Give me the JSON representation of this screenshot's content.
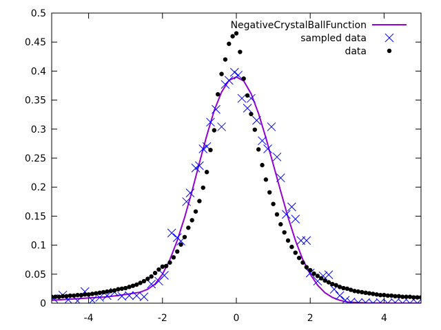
{
  "chart_data": {
    "type": "scatter",
    "title": "",
    "xlabel": "",
    "ylabel": "",
    "xlim": [
      -5,
      5
    ],
    "ylim": [
      0,
      0.5
    ],
    "grid": false,
    "legend_position": "top-right",
    "x_ticks": [
      -4,
      -2,
      0,
      2,
      4
    ],
    "x_tick_labels": [
      "-4",
      "-2",
      "0",
      "2",
      "4"
    ],
    "y_ticks": [
      0,
      0.05,
      0.1,
      0.15,
      0.2,
      0.25,
      0.3,
      0.35,
      0.4,
      0.45,
      0.5
    ],
    "y_tick_labels": [
      "0",
      "0.05",
      "0.1",
      "0.15",
      "0.2",
      "0.25",
      "0.3",
      "0.35",
      "0.4",
      "0.45",
      "0.5"
    ],
    "series": [
      {
        "name": "NegativeCrystalBallFunction",
        "kind": "line",
        "color": "#9400d3",
        "x": [
          -5.0,
          -4.5,
          -4.0,
          -3.5,
          -3.0,
          -2.6,
          -2.4,
          -2.2,
          -2.0,
          -1.8,
          -1.6,
          -1.4,
          -1.2,
          -1.0,
          -0.8,
          -0.6,
          -0.4,
          -0.2,
          0.0,
          0.2,
          0.4,
          0.6,
          0.8,
          1.0,
          1.2,
          1.4,
          1.6,
          1.8,
          2.0,
          2.2,
          2.4,
          2.6,
          2.8,
          3.0,
          3.5,
          4.0,
          4.5,
          5.0
        ],
        "y": [
          0.005,
          0.007,
          0.009,
          0.011,
          0.015,
          0.019,
          0.024,
          0.033,
          0.05,
          0.075,
          0.108,
          0.148,
          0.193,
          0.242,
          0.289,
          0.332,
          0.364,
          0.384,
          0.39,
          0.383,
          0.361,
          0.327,
          0.285,
          0.239,
          0.193,
          0.148,
          0.108,
          0.075,
          0.05,
          0.031,
          0.018,
          0.01,
          0.005,
          0.002,
          0.0005,
          0.0001,
          0.0,
          0.0
        ]
      },
      {
        "name": "sampled data",
        "kind": "cross",
        "color": "#0000ff",
        "x": [
          -4.95,
          -4.7,
          -4.55,
          -4.3,
          -4.1,
          -3.9,
          -3.7,
          -3.5,
          -3.3,
          -3.1,
          -2.9,
          -2.7,
          -2.5,
          -2.3,
          -2.1,
          -1.95,
          -1.75,
          -1.6,
          -1.5,
          -1.35,
          -1.25,
          -1.1,
          -1.0,
          -0.9,
          -0.8,
          -0.7,
          -0.55,
          -0.4,
          -0.3,
          -0.2,
          -0.05,
          0.05,
          0.15,
          0.3,
          0.4,
          0.55,
          0.7,
          0.85,
          0.95,
          1.1,
          1.2,
          1.35,
          1.5,
          1.6,
          1.75,
          1.9,
          2.0,
          2.2,
          2.35,
          2.5,
          2.65,
          2.8,
          2.95,
          3.1,
          3.3,
          3.5,
          3.7,
          3.9,
          4.1,
          4.3,
          4.5,
          4.7,
          4.9
        ],
        "y": [
          0.008,
          0.014,
          0.006,
          0.004,
          0.02,
          0.005,
          0.01,
          0.013,
          0.019,
          0.012,
          0.013,
          0.013,
          0.011,
          0.033,
          0.038,
          0.048,
          0.121,
          0.113,
          0.107,
          0.175,
          0.19,
          0.233,
          0.237,
          0.266,
          0.27,
          0.312,
          0.334,
          0.304,
          0.377,
          0.384,
          0.398,
          0.393,
          0.353,
          0.336,
          0.353,
          0.315,
          0.28,
          0.266,
          0.304,
          0.252,
          0.216,
          0.153,
          0.166,
          0.145,
          0.108,
          0.108,
          0.052,
          0.038,
          0.047,
          0.049,
          0.024,
          0.013,
          0.005,
          0.002,
          0.001,
          0.001,
          0.0,
          0.001,
          0.0,
          0.001,
          0.0,
          0.0,
          0.0
        ]
      },
      {
        "name": "data",
        "kind": "dot",
        "color": "#000000",
        "x": [
          -5.0,
          -4.9,
          -4.8,
          -4.7,
          -4.6,
          -4.5,
          -4.4,
          -4.3,
          -4.2,
          -4.1,
          -4.0,
          -3.9,
          -3.8,
          -3.7,
          -3.6,
          -3.5,
          -3.4,
          -3.3,
          -3.2,
          -3.1,
          -3.0,
          -2.9,
          -2.8,
          -2.7,
          -2.6,
          -2.5,
          -2.4,
          -2.3,
          -2.2,
          -2.1,
          -2.0,
          -1.9,
          -1.8,
          -1.7,
          -1.6,
          -1.5,
          -1.4,
          -1.3,
          -1.2,
          -1.1,
          -1.0,
          -0.9,
          -0.8,
          -0.7,
          -0.6,
          -0.5,
          -0.4,
          -0.3,
          -0.2,
          -0.1,
          0.0,
          0.1,
          0.2,
          0.3,
          0.4,
          0.5,
          0.6,
          0.7,
          0.8,
          0.9,
          1.0,
          1.1,
          1.2,
          1.3,
          1.4,
          1.5,
          1.6,
          1.7,
          1.8,
          1.9,
          2.0,
          2.1,
          2.2,
          2.3,
          2.4,
          2.5,
          2.6,
          2.7,
          2.8,
          2.9,
          3.0,
          3.1,
          3.2,
          3.3,
          3.4,
          3.5,
          3.6,
          3.7,
          3.8,
          3.9,
          4.0,
          4.1,
          4.2,
          4.3,
          4.4,
          4.5,
          4.6,
          4.7,
          4.8,
          4.9,
          5.0
        ],
        "y": [
          0.011,
          0.011,
          0.011,
          0.012,
          0.012,
          0.013,
          0.013,
          0.014,
          0.014,
          0.015,
          0.015,
          0.016,
          0.017,
          0.018,
          0.019,
          0.02,
          0.021,
          0.022,
          0.024,
          0.025,
          0.026,
          0.028,
          0.03,
          0.032,
          0.035,
          0.038,
          0.042,
          0.046,
          0.052,
          0.058,
          0.063,
          0.064,
          0.07,
          0.079,
          0.089,
          0.101,
          0.114,
          0.13,
          0.143,
          0.158,
          0.176,
          0.199,
          0.226,
          0.264,
          0.298,
          0.36,
          0.395,
          0.42,
          0.447,
          0.46,
          0.465,
          0.433,
          0.387,
          0.358,
          0.326,
          0.299,
          0.265,
          0.238,
          0.213,
          0.191,
          0.171,
          0.153,
          0.136,
          0.122,
          0.108,
          0.097,
          0.087,
          0.078,
          0.07,
          0.062,
          0.057,
          0.051,
          0.047,
          0.043,
          0.039,
          0.036,
          0.033,
          0.031,
          0.028,
          0.026,
          0.025,
          0.023,
          0.021,
          0.02,
          0.019,
          0.018,
          0.017,
          0.016,
          0.015,
          0.014,
          0.014,
          0.013,
          0.013,
          0.012,
          0.012,
          0.011,
          0.011,
          0.011,
          0.01,
          0.01,
          0.01
        ]
      }
    ]
  }
}
